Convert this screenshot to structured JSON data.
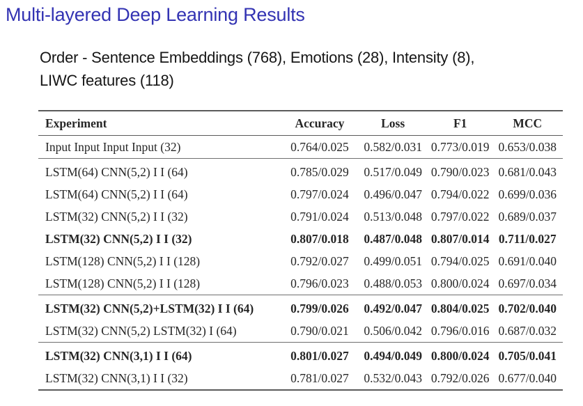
{
  "slide": {
    "title": "Multi-layered Deep Learning Results",
    "subtitle_lines": [
      "Order - Sentence Embeddings (768), Emotions (28), Intensity (8),",
      "LIWC features (118)"
    ]
  },
  "table": {
    "columns": [
      "Experiment",
      "Accuracy",
      "Loss",
      "F1",
      "MCC"
    ],
    "groups": [
      {
        "rows": [
          {
            "experiment": "Input Input Input Input (32)",
            "accuracy": "0.764/0.025",
            "loss": "0.582/0.031",
            "f1": "0.773/0.019",
            "mcc": "0.653/0.038",
            "bold": false
          }
        ]
      },
      {
        "rows": [
          {
            "experiment": "LSTM(64) CNN(5,2) I I (64)",
            "accuracy": "0.785/0.029",
            "loss": "0.517/0.049",
            "f1": "0.790/0.023",
            "mcc": "0.681/0.043",
            "bold": false
          },
          {
            "experiment": "LSTM(64) CNN(5,2) I I (64)",
            "accuracy": "0.797/0.024",
            "loss": "0.496/0.047",
            "f1": "0.794/0.022",
            "mcc": "0.699/0.036",
            "bold": false
          },
          {
            "experiment": "LSTM(32) CNN(5,2) I I (32)",
            "accuracy": "0.791/0.024",
            "loss": "0.513/0.048",
            "f1": "0.797/0.022",
            "mcc": "0.689/0.037",
            "bold": false
          },
          {
            "experiment": "LSTM(32) CNN(5,2) I I (32)",
            "accuracy": "0.807/0.018",
            "loss": "0.487/0.048",
            "f1": "0.807/0.014",
            "mcc": "0.711/0.027",
            "bold": true
          },
          {
            "experiment": "LSTM(128) CNN(5,2) I I (128)",
            "accuracy": "0.792/0.027",
            "loss": "0.499/0.051",
            "f1": "0.794/0.025",
            "mcc": "0.691/0.040",
            "bold": false
          },
          {
            "experiment": "LSTM(128) CNN(5,2) I I (128)",
            "accuracy": "0.796/0.023",
            "loss": "0.488/0.053",
            "f1": "0.800/0.024",
            "mcc": "0.697/0.034",
            "bold": false
          }
        ]
      },
      {
        "rows": [
          {
            "experiment": "LSTM(32) CNN(5,2)+LSTM(32) I I (64)",
            "accuracy": "0.799/0.026",
            "loss": "0.492/0.047",
            "f1": "0.804/0.025",
            "mcc": "0.702/0.040",
            "bold": true
          },
          {
            "experiment": "LSTM(32) CNN(5,2) LSTM(32) I (64)",
            "accuracy": "0.790/0.021",
            "loss": "0.506/0.042",
            "f1": "0.796/0.016",
            "mcc": "0.687/0.032",
            "bold": false
          }
        ]
      },
      {
        "rows": [
          {
            "experiment": "LSTM(32) CNN(3,1) I I (64)",
            "accuracy": "0.801/0.027",
            "loss": "0.494/0.049",
            "f1": "0.800/0.024",
            "mcc": "0.705/0.041",
            "bold": true
          },
          {
            "experiment": "LSTM(32) CNN(3,1) I I (32)",
            "accuracy": "0.781/0.027",
            "loss": "0.532/0.043",
            "f1": "0.792/0.026",
            "mcc": "0.677/0.040",
            "bold": false
          }
        ]
      }
    ]
  },
  "colors": {
    "title": "#3333b3",
    "text": "#262626",
    "rule": "#5a5a5a"
  }
}
